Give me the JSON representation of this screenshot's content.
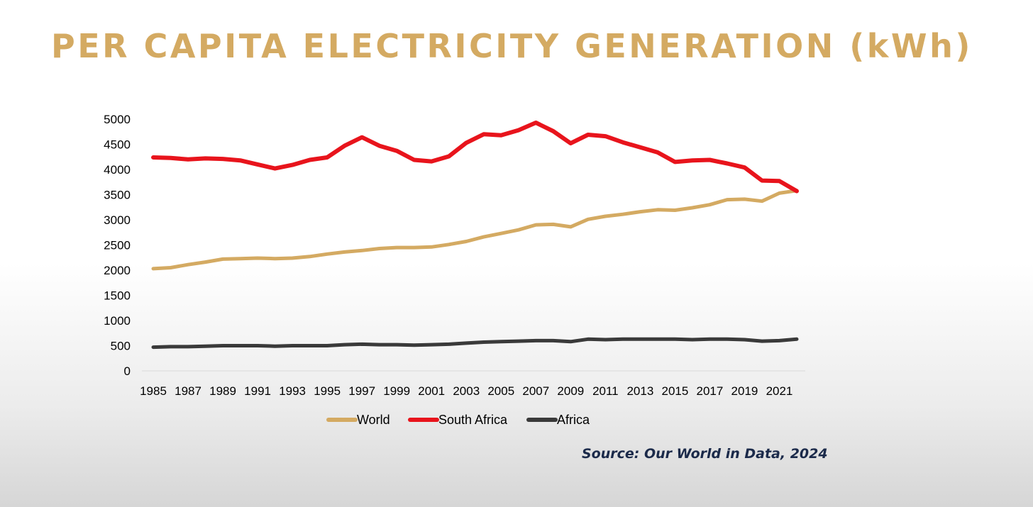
{
  "slide": {
    "title": "PER CAPITA ELECTRICITY GENERATION (kWh)",
    "source": "Source: Our World in Data, 2024"
  },
  "chart_data": {
    "type": "line",
    "title": "",
    "xlabel": "",
    "ylabel": "",
    "x": [
      1985,
      1986,
      1987,
      1988,
      1989,
      1990,
      1991,
      1992,
      1993,
      1994,
      1995,
      1996,
      1997,
      1998,
      1999,
      2000,
      2001,
      2002,
      2003,
      2004,
      2005,
      2006,
      2007,
      2008,
      2009,
      2010,
      2011,
      2012,
      2013,
      2014,
      2015,
      2016,
      2017,
      2018,
      2019,
      2020,
      2021,
      2022
    ],
    "xtick_labels": [
      "1985",
      "1987",
      "1989",
      "1991",
      "1993",
      "1995",
      "1997",
      "1999",
      "2001",
      "2003",
      "2005",
      "2007",
      "2009",
      "2011",
      "2013",
      "2015",
      "2017",
      "2019",
      "2021"
    ],
    "ylim": [
      0,
      5000
    ],
    "yticks": [
      0,
      500,
      1000,
      1500,
      2000,
      2500,
      3000,
      3500,
      4000,
      4500,
      5000
    ],
    "grid": false,
    "legend_position": "bottom",
    "series": [
      {
        "name": "World",
        "color": "#d4aa62",
        "values": [
          2030,
          2050,
          2110,
          2160,
          2220,
          2230,
          2240,
          2230,
          2240,
          2270,
          2320,
          2360,
          2390,
          2430,
          2450,
          2450,
          2460,
          2510,
          2570,
          2660,
          2730,
          2800,
          2900,
          2910,
          2860,
          3010,
          3070,
          3110,
          3160,
          3200,
          3190,
          3240,
          3300,
          3400,
          3410,
          3370,
          3530,
          3580
        ]
      },
      {
        "name": "South Africa",
        "color": "#e8141c",
        "values": [
          4240,
          4230,
          4200,
          4220,
          4210,
          4180,
          4100,
          4020,
          4090,
          4190,
          4240,
          4470,
          4640,
          4470,
          4370,
          4190,
          4160,
          4260,
          4530,
          4700,
          4680,
          4780,
          4930,
          4760,
          4520,
          4690,
          4660,
          4540,
          4440,
          4340,
          4150,
          4180,
          4190,
          4120,
          4040,
          3780,
          3770,
          3570
        ]
      },
      {
        "name": "Africa",
        "color": "#3a3a3a",
        "values": [
          470,
          480,
          480,
          490,
          500,
          500,
          500,
          490,
          500,
          500,
          500,
          520,
          530,
          520,
          520,
          510,
          520,
          530,
          550,
          570,
          580,
          590,
          600,
          600,
          580,
          630,
          620,
          630,
          630,
          630,
          630,
          620,
          630,
          630,
          620,
          590,
          600,
          630
        ]
      }
    ]
  }
}
